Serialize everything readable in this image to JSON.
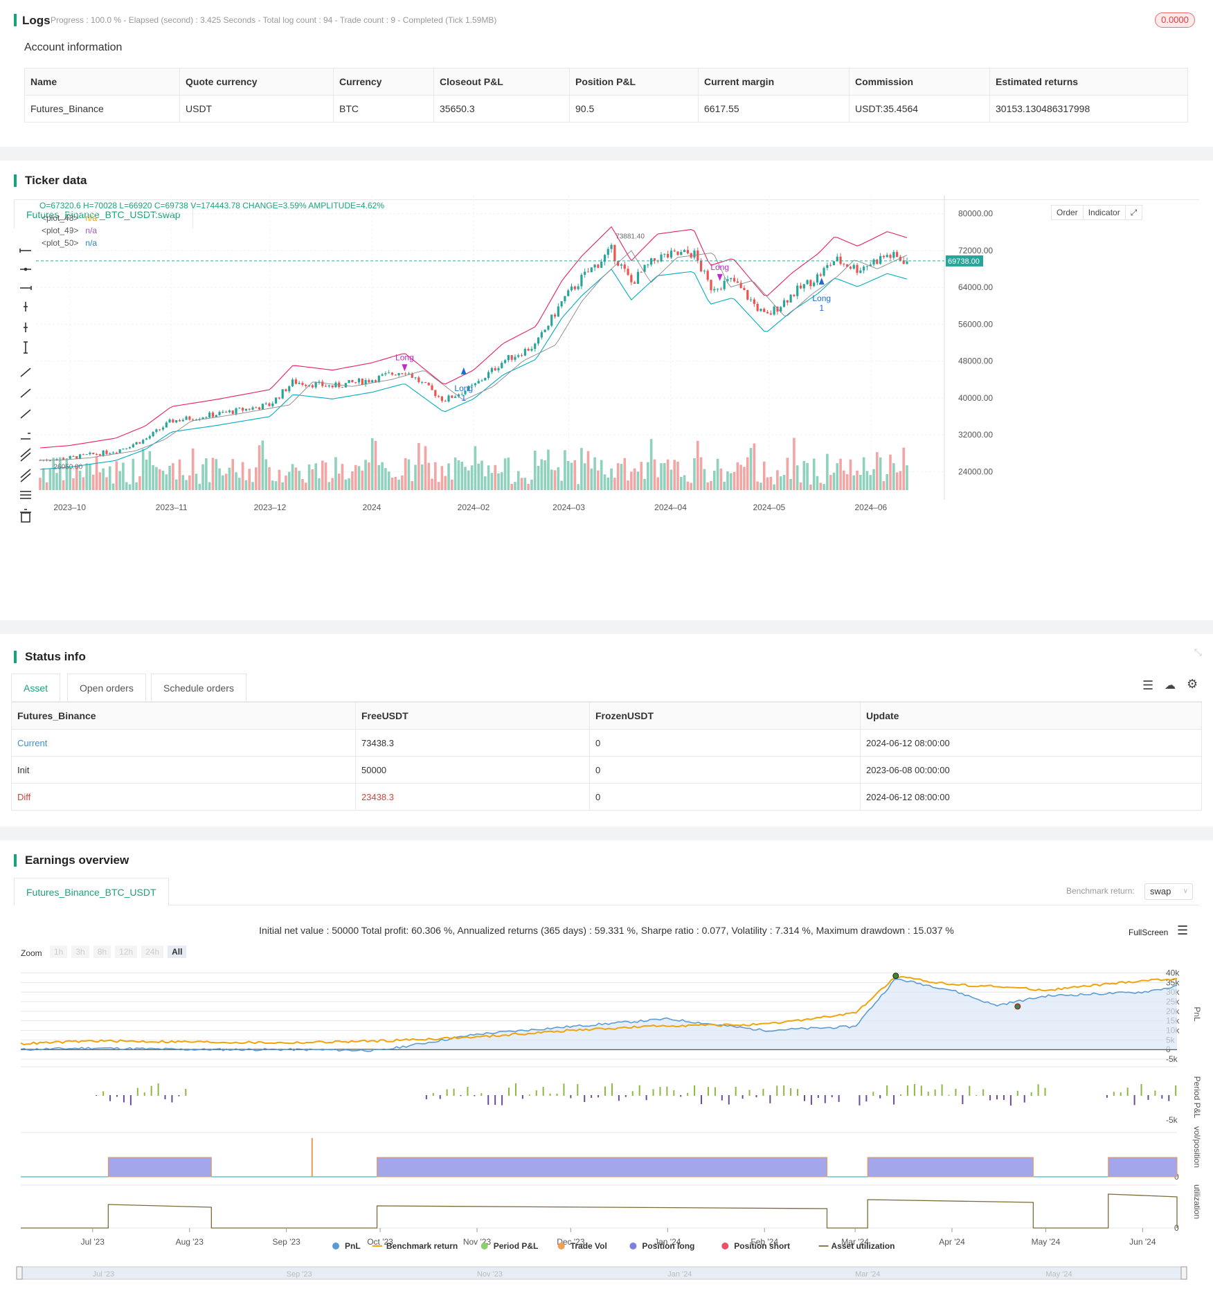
{
  "logs": {
    "title": "Logs",
    "summary": "Progress : 100.0 % - Elapsed (second) : 3.425  Seconds - Total log count : 94 - Trade count : 9 - Completed (Tick 1.59MB)",
    "badge": "0.0000"
  },
  "account": {
    "title": "Account information",
    "headers": [
      "Name",
      "Quote currency",
      "Currency",
      "Closeout P&L",
      "Position P&L",
      "Current margin",
      "Commission",
      "Estimated returns"
    ],
    "row": [
      "Futures_Binance",
      "USDT",
      "BTC",
      "35650.3",
      "90.5",
      "6617.55",
      "USDT:35.4564",
      "30153.130486317998"
    ]
  },
  "ticker": {
    "title": "Ticker data",
    "tab": "Futures_Binance_BTC_USDT:swap",
    "ohlc": "O=67320.6 H=70028 L=66920 C=69738 V=174443.78 CHANGE=3.59% AMPLITUDE=4.62%",
    "plots": [
      {
        "name": "<plot_48>",
        "value": "n/a",
        "color": "#f39c12"
      },
      {
        "name": "<plot_49>",
        "value": "n/a",
        "color": "#9b59b6"
      },
      {
        "name": "<plot_50>",
        "value": "n/a",
        "color": "#2980b9"
      }
    ],
    "buttons": [
      "Order",
      "Indicator"
    ],
    "price_tag": "69738.00",
    "high_label": "73881.40",
    "low_label": "26050.00",
    "long_labels": [
      "Long",
      "Long",
      "Long",
      "Long"
    ],
    "long_counts": [
      "1",
      "1"
    ],
    "colors": {
      "up": "#26a69a",
      "down": "#ef5350",
      "upper": "#e91e63",
      "lower": "#00acc1",
      "mid": "#888888",
      "accent": "#1aa37a"
    }
  },
  "chart_data": [
    {
      "type": "candlestick",
      "x_ticks": [
        "2023–10",
        "2023–11",
        "2023–12",
        "2024",
        "2024–02",
        "2024–03",
        "2024–04",
        "2024–05",
        "2024–06"
      ],
      "y_ticks": [
        "80000.00",
        "72000.00",
        "64000.00",
        "56000.00",
        "48000.00",
        "40000.00",
        "32000.00",
        "24000.00"
      ],
      "ylim": [
        20000,
        84000
      ],
      "last_close": 69738,
      "series": [
        {
          "name": "price",
          "x": [
            "2023-09-22",
            "2023-10-01",
            "2023-10-15",
            "2023-10-24",
            "2023-11-01",
            "2023-11-15",
            "2023-12-01",
            "2023-12-08",
            "2023-12-20",
            "2024-01-01",
            "2024-01-11",
            "2024-01-23",
            "2024-02-01",
            "2024-02-10",
            "2024-02-20",
            "2024-02-28",
            "2024-03-05",
            "2024-03-14",
            "2024-03-20",
            "2024-03-28",
            "2024-04-08",
            "2024-04-13",
            "2024-04-20",
            "2024-04-30",
            "2024-05-08",
            "2024-05-16",
            "2024-05-21",
            "2024-05-28",
            "2024-06-06",
            "2024-06-12"
          ],
          "values": [
            26500,
            27000,
            28500,
            31000,
            35000,
            36500,
            38500,
            43500,
            42500,
            44000,
            46000,
            39500,
            42500,
            48000,
            51500,
            61000,
            66000,
            72000,
            65000,
            70500,
            71500,
            64000,
            65500,
            57500,
            62500,
            66500,
            70000,
            68000,
            71000,
            69738
          ]
        }
      ]
    },
    {
      "type": "line",
      "title": "Initial net value : 50000 Total profit: 60.306 %, Annualized returns (365 days) : 59.331 %, Sharpe ratio : 0.077, Volatility : 7.314 %, Maximum drawdown : 15.037 %",
      "x_ticks": [
        "Jul '23",
        "Aug '23",
        "Sep '23",
        "Oct '23",
        "Nov '23",
        "Dec '23",
        "Jan '24",
        "Feb '24",
        "Mar '24",
        "Apr '24",
        "May '24",
        "Jun '24"
      ],
      "y_ticks": [
        "40k",
        "35k",
        "30k",
        "25k",
        "20k",
        "15k",
        "10k",
        "5k",
        "0",
        "-5k"
      ],
      "ylabel": "PnL",
      "series": [
        {
          "name": "PnL",
          "color": "#5b9bd5",
          "x": [
            "2023-06-08",
            "2023-07-01",
            "2023-08-01",
            "2023-09-01",
            "2023-10-01",
            "2023-11-01",
            "2023-12-01",
            "2024-01-01",
            "2024-02-01",
            "2024-03-01",
            "2024-03-14",
            "2024-04-01",
            "2024-04-15",
            "2024-05-01",
            "2024-06-01",
            "2024-06-12"
          ],
          "values": [
            0,
            800,
            0,
            0,
            -500,
            8000,
            12000,
            16000,
            10000,
            12000,
            37000,
            31000,
            23000,
            28000,
            30000,
            33000
          ]
        },
        {
          "name": "Benchmark return",
          "color": "#f0a30a",
          "x": [
            "2023-06-08",
            "2023-07-01",
            "2023-08-01",
            "2023-09-01",
            "2023-10-01",
            "2023-11-01",
            "2023-12-01",
            "2024-01-01",
            "2024-02-01",
            "2024-03-01",
            "2024-03-14",
            "2024-04-01",
            "2024-04-15",
            "2024-05-01",
            "2024-06-01",
            "2024-06-12"
          ],
          "values": [
            3000,
            4500,
            4000,
            3500,
            4500,
            6500,
            10000,
            12500,
            13000,
            19000,
            38000,
            34000,
            33000,
            31000,
            36000,
            37000
          ]
        }
      ]
    }
  ],
  "status": {
    "title": "Status info",
    "tabs": [
      "Asset",
      "Open orders",
      "Schedule orders"
    ],
    "headers": [
      "Futures_Binance",
      "FreeUSDT",
      "FrozenUSDT",
      "Update"
    ],
    "rows": [
      [
        "Current",
        "73438.3",
        "0",
        "2024-06-12 08:00:00"
      ],
      [
        "Init",
        "50000",
        "0",
        "2023-06-08 00:00:00"
      ],
      [
        "Diff",
        "23438.3",
        "0",
        "2024-06-12 08:00:00"
      ]
    ]
  },
  "earnings": {
    "title": "Earnings overview",
    "tab": "Futures_Binance_BTC_USDT",
    "benchmark_label": "Benchmark return:",
    "benchmark_value": "swap",
    "fullscreen": "FullScreen",
    "zoom_label": "Zoom",
    "zoom_options": [
      "1h",
      "3h",
      "8h",
      "12h",
      "24h",
      "All"
    ],
    "side_labels": [
      "PnL",
      "Period P&L",
      "vol/position",
      "utilization"
    ],
    "period_ticks": [
      "-5k"
    ],
    "vol_ticks": [
      "0"
    ],
    "util_ticks": [
      "0"
    ],
    "legend": [
      {
        "name": "PnL",
        "color": "#5b9bd5"
      },
      {
        "name": "Benchmark return",
        "color": "#f0a30a"
      },
      {
        "name": "Period P&L",
        "color": "#8bd16a"
      },
      {
        "name": "Trade Vol",
        "color": "#f0a050"
      },
      {
        "name": "Position long",
        "color": "#7b7fe0"
      },
      {
        "name": "Position short",
        "color": "#e8506a"
      },
      {
        "name": "Asset utilization",
        "color": "#8c7a4a"
      }
    ],
    "navigator_ticks": [
      "Jul '23",
      "Sep '23",
      "Nov '23",
      "Jan '24",
      "Mar '24",
      "May '24"
    ]
  }
}
